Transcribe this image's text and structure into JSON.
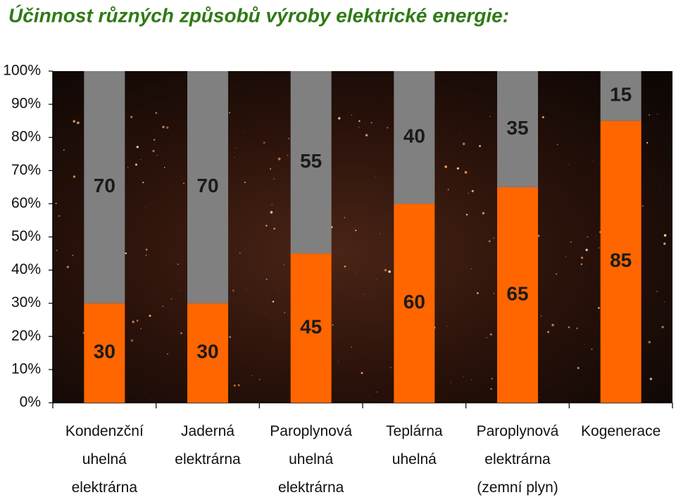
{
  "chart_data": {
    "type": "stacked-bar",
    "title": "Účinnost různých způsobů výroby elektrické energie:",
    "categories": [
      [
        "Kondenzční",
        "uhelná",
        "elektrárna"
      ],
      [
        "Jaderná",
        "elektrárna"
      ],
      [
        "Paroplynová",
        "uhelná",
        "elektrárna"
      ],
      [
        "Teplárna",
        "uhelná"
      ],
      [
        "Paroplynová",
        "elektrárna",
        "(zemní plyn)"
      ],
      [
        "Kogenerace"
      ]
    ],
    "series": [
      {
        "color": "#ff6600",
        "values": [
          30,
          30,
          45,
          60,
          65,
          85
        ]
      },
      {
        "color": "#808080",
        "values": [
          70,
          70,
          55,
          40,
          35,
          15
        ]
      }
    ],
    "ylim": [
      0,
      100
    ],
    "yticks": [
      {
        "value": 0,
        "label": "0%"
      },
      {
        "value": 10,
        "label": "10%"
      },
      {
        "value": 20,
        "label": "20%"
      },
      {
        "value": 30,
        "label": "30%"
      },
      {
        "value": 40,
        "label": "40%"
      },
      {
        "value": 50,
        "label": "50%"
      },
      {
        "value": 60,
        "label": "60%"
      },
      {
        "value": 70,
        "label": "70%"
      },
      {
        "value": 80,
        "label": "80%"
      },
      {
        "value": 90,
        "label": "90%"
      },
      {
        "value": 100,
        "label": "100%"
      }
    ]
  }
}
